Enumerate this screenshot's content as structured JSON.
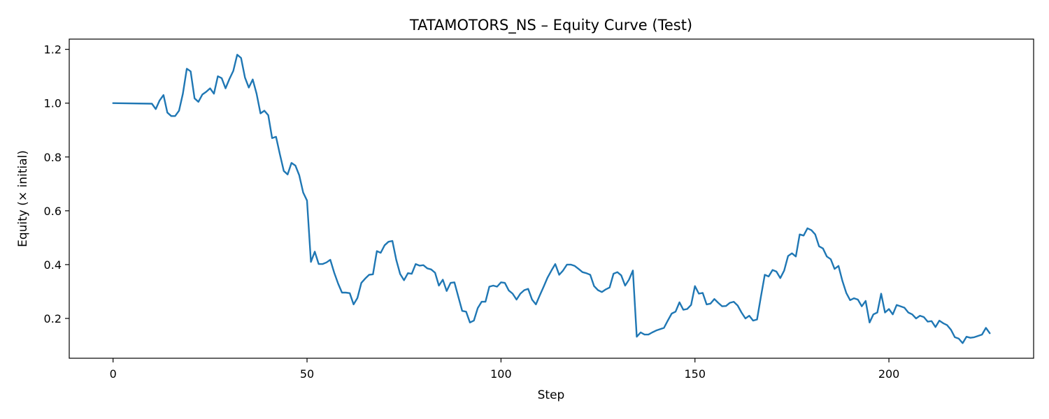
{
  "chart_data": {
    "type": "line",
    "title": "TATAMOTORS_NS – Equity Curve (Test)",
    "xlabel": "Step",
    "ylabel": "Equity (× initial)",
    "xlim": [
      -11.3,
      237.3
    ],
    "ylim": [
      0.052,
      1.238
    ],
    "xticks": [
      0,
      50,
      100,
      150,
      200
    ],
    "yticks": [
      0.2,
      0.4,
      0.6,
      0.8,
      1.0,
      1.2
    ],
    "xtick_labels": [
      "0",
      "50",
      "100",
      "150",
      "200"
    ],
    "ytick_labels": [
      "0.2",
      "0.4",
      "0.6",
      "0.8",
      "1.0",
      "1.2"
    ],
    "grid": false,
    "line_color": "#1f77b4",
    "series": [
      {
        "x": [
          0,
          10,
          11,
          12,
          13,
          14,
          15,
          16,
          17,
          18,
          19,
          20,
          21,
          22,
          23,
          24,
          25,
          26,
          27,
          28,
          29,
          30,
          31,
          32,
          33,
          34,
          35,
          36,
          37,
          38,
          39,
          40,
          41,
          42,
          43,
          44,
          45,
          46,
          47,
          48,
          49,
          50,
          51,
          52,
          53,
          54,
          55,
          56,
          57,
          58,
          59,
          60,
          61,
          62,
          63,
          64,
          65,
          66,
          67,
          68,
          69,
          70,
          71,
          72,
          73,
          74,
          75,
          76,
          77,
          78,
          79,
          80,
          81,
          82,
          83,
          84,
          85,
          86,
          87,
          88,
          89,
          90,
          91,
          92,
          93,
          94,
          95,
          96,
          97,
          98,
          99,
          100,
          101,
          102,
          103,
          104,
          105,
          106,
          107,
          108,
          109,
          110,
          111,
          112,
          113,
          114,
          115,
          116,
          117,
          118,
          119,
          120,
          121,
          122,
          123,
          124,
          125,
          126,
          127,
          128,
          129,
          130,
          131,
          132,
          133,
          134,
          135,
          136,
          137,
          138,
          139,
          140,
          141,
          142,
          143,
          144,
          145,
          146,
          147,
          148,
          149,
          150,
          151,
          152,
          153,
          154,
          155,
          156,
          157,
          158,
          159,
          160,
          161,
          162,
          163,
          164,
          165,
          166,
          167,
          168,
          169,
          170,
          171,
          172,
          173,
          174,
          175,
          176,
          177,
          178,
          179,
          180,
          181,
          182,
          183,
          184,
          185,
          186,
          187,
          188,
          189,
          190,
          191,
          192,
          193,
          194,
          195,
          196,
          197,
          198,
          199,
          200,
          201,
          202,
          203,
          204,
          205,
          206,
          207,
          208,
          209,
          210,
          211,
          212,
          213,
          214,
          215,
          216,
          217,
          218,
          219,
          220,
          221,
          222,
          223,
          224,
          225,
          226
        ],
        "values": [
          1.0,
          0.998,
          0.978,
          1.01,
          1.03,
          0.965,
          0.952,
          0.952,
          0.972,
          1.035,
          1.128,
          1.118,
          1.018,
          1.005,
          1.032,
          1.042,
          1.055,
          1.035,
          1.1,
          1.093,
          1.055,
          1.09,
          1.12,
          1.18,
          1.168,
          1.095,
          1.058,
          1.088,
          1.035,
          0.962,
          0.972,
          0.955,
          0.87,
          0.875,
          0.81,
          0.748,
          0.735,
          0.778,
          0.768,
          0.732,
          0.668,
          0.638,
          0.41,
          0.448,
          0.402,
          0.402,
          0.408,
          0.418,
          0.37,
          0.33,
          0.296,
          0.296,
          0.294,
          0.252,
          0.276,
          0.332,
          0.348,
          0.362,
          0.364,
          0.45,
          0.444,
          0.472,
          0.485,
          0.488,
          0.418,
          0.365,
          0.342,
          0.368,
          0.366,
          0.402,
          0.396,
          0.398,
          0.386,
          0.382,
          0.37,
          0.322,
          0.344,
          0.302,
          0.332,
          0.334,
          0.28,
          0.228,
          0.225,
          0.185,
          0.192,
          0.238,
          0.262,
          0.262,
          0.318,
          0.322,
          0.318,
          0.334,
          0.332,
          0.304,
          0.292,
          0.27,
          0.292,
          0.305,
          0.31,
          0.27,
          0.252,
          0.286,
          0.318,
          0.352,
          0.378,
          0.402,
          0.362,
          0.378,
          0.4,
          0.4,
          0.395,
          0.384,
          0.372,
          0.368,
          0.362,
          0.32,
          0.305,
          0.298,
          0.308,
          0.315,
          0.366,
          0.372,
          0.36,
          0.322,
          0.344,
          0.378,
          0.132,
          0.148,
          0.14,
          0.14,
          0.148,
          0.155,
          0.16,
          0.165,
          0.192,
          0.218,
          0.225,
          0.26,
          0.232,
          0.235,
          0.25,
          0.32,
          0.292,
          0.295,
          0.252,
          0.255,
          0.272,
          0.258,
          0.245,
          0.246,
          0.258,
          0.262,
          0.248,
          0.222,
          0.2,
          0.21,
          0.192,
          0.196,
          0.28,
          0.362,
          0.356,
          0.38,
          0.374,
          0.35,
          0.378,
          0.432,
          0.442,
          0.43,
          0.512,
          0.508,
          0.535,
          0.528,
          0.512,
          0.468,
          0.46,
          0.43,
          0.42,
          0.384,
          0.395,
          0.34,
          0.295,
          0.268,
          0.275,
          0.27,
          0.245,
          0.265,
          0.185,
          0.215,
          0.222,
          0.292,
          0.222,
          0.235,
          0.215,
          0.25,
          0.245,
          0.24,
          0.222,
          0.215,
          0.2,
          0.21,
          0.205,
          0.188,
          0.19,
          0.168,
          0.192,
          0.182,
          0.175,
          0.158,
          0.13,
          0.125,
          0.108,
          0.132,
          0.128,
          0.13,
          0.135,
          0.14,
          0.165,
          0.145
        ]
      }
    ]
  }
}
